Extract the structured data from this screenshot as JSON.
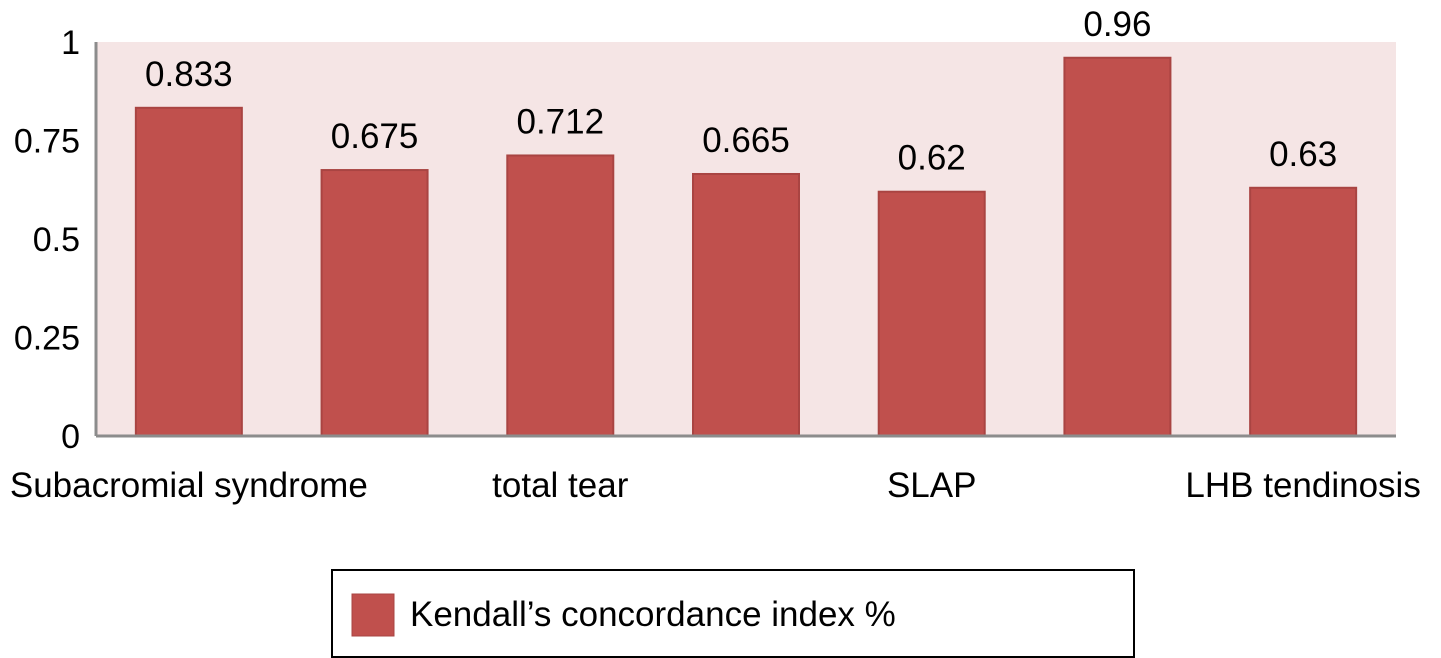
{
  "chart_data": {
    "type": "bar",
    "categories": [
      "Subacromial syndrome",
      "",
      "total tear",
      "",
      "SLAP",
      "",
      "LHB tendinosis"
    ],
    "series": [
      {
        "name": "Kendall’s concordance index %",
        "values": [
          0.833,
          0.675,
          0.712,
          0.665,
          0.62,
          0.96,
          0.63
        ],
        "data_labels": [
          "0.833",
          "0.675",
          "0.712",
          "0.665",
          "0.62",
          "0.96",
          "0.63"
        ]
      }
    ],
    "ylim": [
      0,
      1
    ],
    "yticks": [
      0,
      0.25,
      0.5,
      0.75,
      1
    ],
    "ytick_labels": [
      "0",
      "0.25",
      "0.5",
      "0.75",
      "1"
    ],
    "grid": false,
    "legend_position": "bottom",
    "colors": {
      "bar": "#c0504d",
      "bar_border": "#a94442",
      "plot_background": "#f5e5e5",
      "axis": "#8c8c8c"
    }
  }
}
